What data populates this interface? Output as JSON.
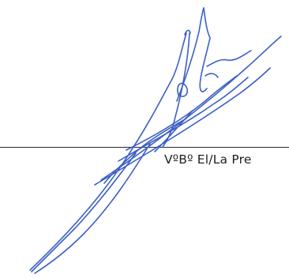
{
  "signature_block": {
    "caption": "VºBº El/La Pre",
    "ink_color": "#3b5fc4",
    "line_color": "#2b2b2b"
  }
}
